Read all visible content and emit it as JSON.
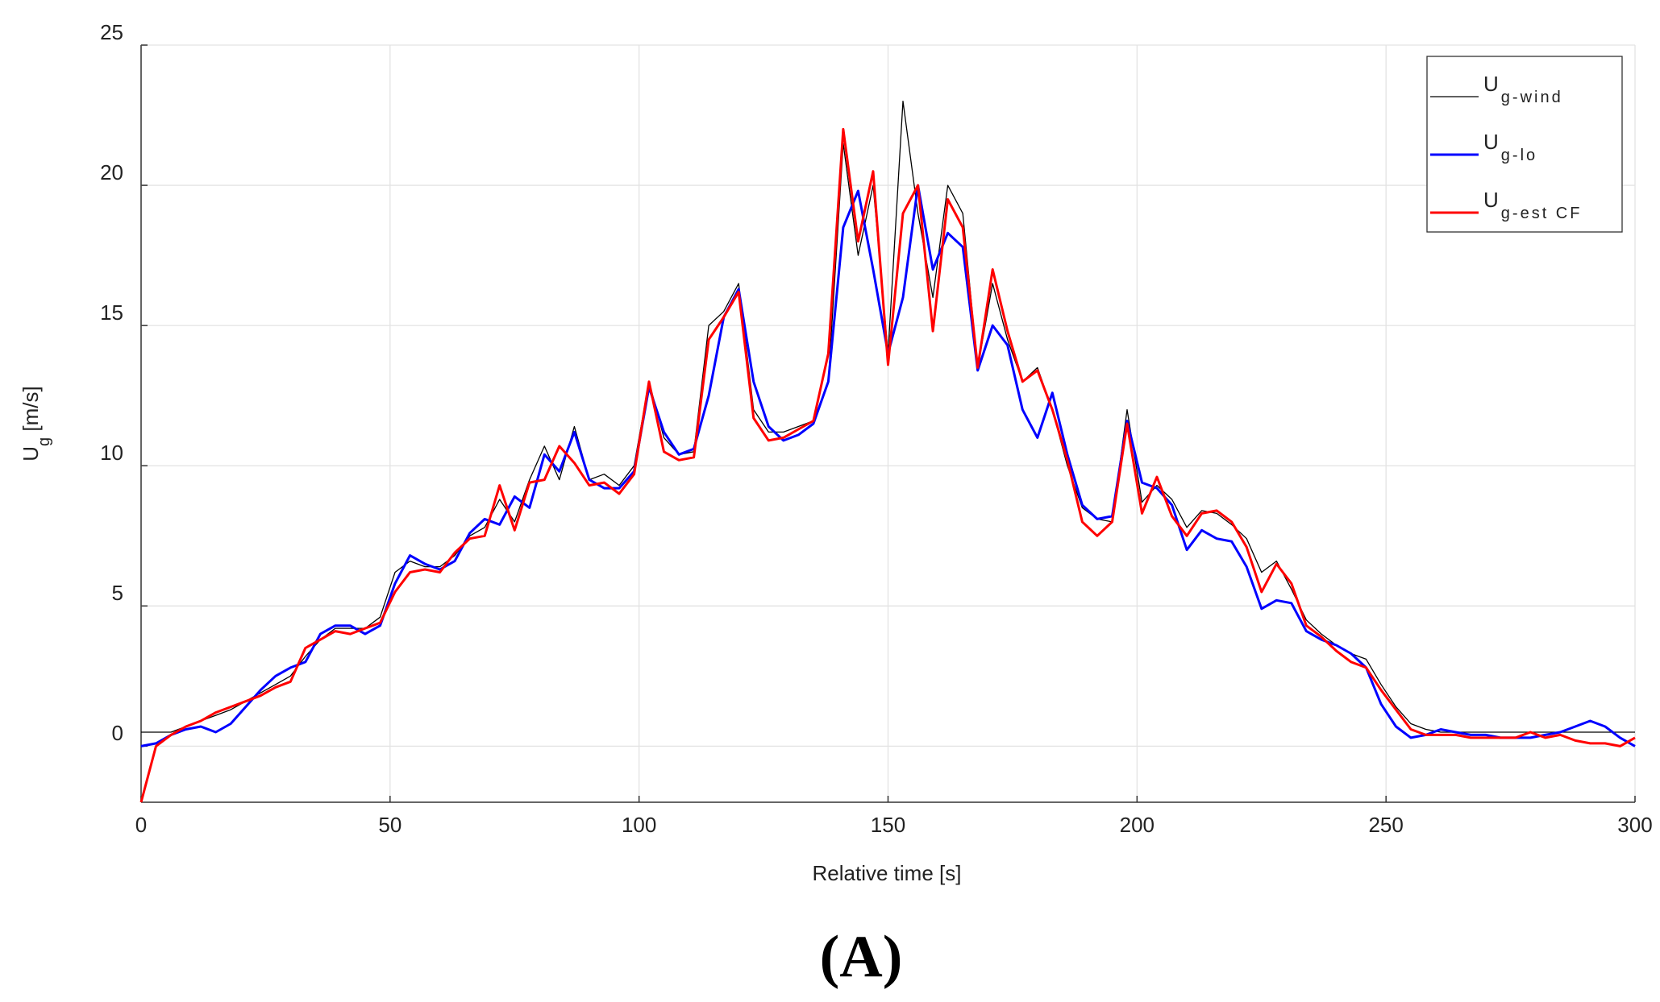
{
  "chart_data": {
    "type": "line",
    "title": "(A)",
    "xlabel": "Relative time [s]",
    "ylabel": "Ug [m/s]",
    "x": [
      0,
      3,
      6,
      9,
      12,
      15,
      18,
      21,
      24,
      27,
      30,
      33,
      36,
      39,
      42,
      45,
      48,
      51,
      54,
      57,
      60,
      63,
      66,
      69,
      72,
      75,
      78,
      81,
      84,
      87,
      90,
      93,
      96,
      99,
      102,
      105,
      108,
      111,
      114,
      117,
      120,
      123,
      126,
      129,
      132,
      135,
      138,
      141,
      144,
      147,
      150,
      153,
      156,
      159,
      162,
      165,
      168,
      171,
      174,
      177,
      180,
      183,
      186,
      189,
      192,
      195,
      198,
      201,
      204,
      207,
      210,
      213,
      216,
      219,
      222,
      225,
      228,
      231,
      234,
      237,
      240,
      243,
      246,
      249,
      252,
      255,
      258,
      261,
      264,
      267,
      270,
      273,
      276,
      279,
      282,
      285,
      288,
      291,
      294,
      297,
      300
    ],
    "series": [
      {
        "name": "Ug-wind",
        "color": "#000000",
        "width": 1.3,
        "values": [
          0.5,
          0.5,
          0.5,
          0.7,
          0.9,
          1.1,
          1.3,
          1.6,
          1.9,
          2.2,
          2.5,
          3.2,
          3.8,
          4.2,
          4.2,
          4.2,
          4.6,
          6.2,
          6.6,
          6.4,
          6.4,
          6.8,
          7.5,
          7.8,
          8.8,
          8.0,
          9.5,
          10.7,
          9.5,
          11.4,
          9.5,
          9.7,
          9.3,
          10,
          13,
          11,
          10.4,
          10.5,
          15,
          15.5,
          16.5,
          12,
          11.2,
          11.2,
          11.4,
          11.6,
          13,
          21.5,
          17.5,
          20,
          14,
          23,
          19,
          16,
          20,
          19,
          13.5,
          16.5,
          14.5,
          13,
          13.5,
          12,
          10,
          8.5,
          8.1,
          8,
          12,
          8.7,
          9.3,
          8.8,
          7.8,
          8.4,
          8.3,
          7.9,
          7.4,
          6.2,
          6.6,
          5.6,
          4.5,
          4,
          3.6,
          3.3,
          3.1,
          2.2,
          1.4,
          0.8,
          0.6,
          0.5,
          0.5,
          0.5,
          0.5,
          0.5,
          0.5,
          0.5,
          0.5,
          0.5,
          0.5,
          0.5,
          0.5,
          0.5,
          0.5
        ]
      },
      {
        "name": "Ug-lo",
        "color": "#0000ff",
        "width": 3,
        "values": [
          0,
          0.1,
          0.4,
          0.6,
          0.7,
          0.5,
          0.8,
          1.4,
          2,
          2.5,
          2.8,
          3,
          4,
          4.3,
          4.3,
          4,
          4.3,
          5.8,
          6.8,
          6.5,
          6.3,
          6.6,
          7.6,
          8.1,
          7.9,
          8.9,
          8.5,
          10.4,
          9.8,
          11.2,
          9.5,
          9.2,
          9.2,
          9.8,
          12.8,
          11.2,
          10.4,
          10.6,
          12.5,
          15.3,
          16.3,
          13,
          11.4,
          10.9,
          11.1,
          11.5,
          13,
          18.5,
          19.8,
          17,
          14,
          16,
          20,
          17,
          18.3,
          17.8,
          13.4,
          15,
          14.3,
          12,
          11,
          12.6,
          10.4,
          8.6,
          8.1,
          8.2,
          11.6,
          9.4,
          9.2,
          8.6,
          7,
          7.7,
          7.4,
          7.3,
          6.4,
          4.9,
          5.2,
          5.1,
          4.1,
          3.8,
          3.6,
          3.3,
          2.8,
          1.5,
          0.7,
          0.3,
          0.4,
          0.6,
          0.5,
          0.4,
          0.4,
          0.3,
          0.3,
          0.3,
          0.4,
          0.5,
          0.7,
          0.9,
          0.7,
          0.3,
          0
        ]
      },
      {
        "name": "Ug-est CF",
        "color": "#ff0000",
        "width": 3,
        "values": [
          -2,
          0,
          0.4,
          0.7,
          0.9,
          1.2,
          1.4,
          1.6,
          1.8,
          2.1,
          2.3,
          3.5,
          3.8,
          4.1,
          4,
          4.2,
          4.4,
          5.5,
          6.2,
          6.3,
          6.2,
          6.9,
          7.4,
          7.5,
          9.3,
          7.7,
          9.4,
          9.5,
          10.7,
          10.1,
          9.3,
          9.4,
          9,
          9.7,
          13,
          10.5,
          10.2,
          10.3,
          14.5,
          15.3,
          16.2,
          11.7,
          10.9,
          11,
          11.3,
          11.6,
          14,
          22,
          18,
          20.5,
          13.6,
          19,
          20,
          14.8,
          19.5,
          18.5,
          13.5,
          17,
          14.8,
          13,
          13.4,
          12,
          10.2,
          8,
          7.5,
          8,
          11.5,
          8.3,
          9.6,
          8.2,
          7.5,
          8.3,
          8.4,
          8,
          7.1,
          5.5,
          6.5,
          5.8,
          4.3,
          3.9,
          3.4,
          3,
          2.8,
          2,
          1.3,
          0.6,
          0.4,
          0.4,
          0.4,
          0.3,
          0.3,
          0.3,
          0.3,
          0.5,
          0.3,
          0.4,
          0.2,
          0.1,
          0.1,
          0,
          0.3
        ]
      }
    ],
    "xlim": [
      0,
      300
    ],
    "ylim": [
      -2,
      25
    ],
    "xticks": [
      0,
      50,
      100,
      150,
      200,
      250,
      300
    ],
    "yticks": [
      0,
      5,
      10,
      15,
      20,
      25
    ],
    "grid": true,
    "legend": "upper right"
  }
}
